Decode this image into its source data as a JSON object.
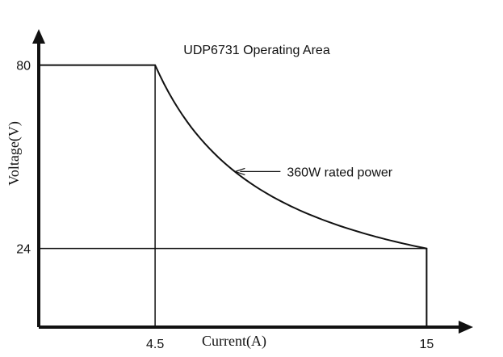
{
  "chart_data": {
    "type": "line",
    "title": "UDP6731 Operating Area",
    "xlabel": "Current(A)",
    "ylabel": "Voltage(V)",
    "xlim": [
      0,
      16.8
    ],
    "ylim": [
      0,
      91
    ],
    "x_ticks": [
      "4.5",
      "15"
    ],
    "y_ticks": [
      "80",
      "24"
    ],
    "grid": false,
    "series": [
      {
        "type": "constant-power-curve",
        "power_w": 360,
        "x_start": 4.5,
        "x_end": 15,
        "points": [
          {
            "x": 0,
            "y": 80
          },
          {
            "x": 4.5,
            "y": 80
          },
          {
            "x": 6,
            "y": 60
          },
          {
            "x": 8,
            "y": 45
          },
          {
            "x": 10,
            "y": 36
          },
          {
            "x": 12,
            "y": 30
          },
          {
            "x": 15,
            "y": 24
          },
          {
            "x": 15,
            "y": 0
          }
        ]
      }
    ],
    "reference_lines": [
      {
        "orientation": "horizontal",
        "y": 24,
        "x_from": 0,
        "x_to": 15
      },
      {
        "orientation": "vertical",
        "x": 4.5,
        "y_from": 0,
        "y_to": 80
      }
    ],
    "annotations": [
      {
        "text": "360W rated power",
        "arrow": true,
        "points_to": {
          "x": 7.6,
          "y": 47.5
        }
      }
    ]
  }
}
